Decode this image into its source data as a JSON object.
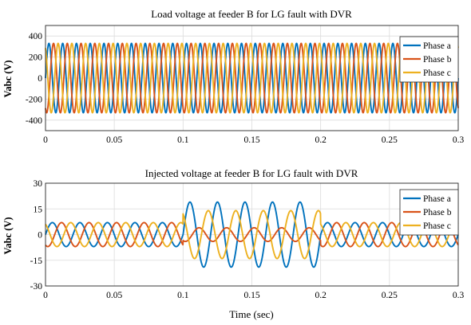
{
  "figure": {
    "xlabel": "Time (sec)"
  },
  "chart_data": [
    {
      "type": "line",
      "title": "Load voltage at feeder B for LG fault with DVR",
      "xlabel": "",
      "ylabel": "Vabc (V)",
      "xlim": [
        0,
        0.3
      ],
      "ylim": [
        -500,
        500
      ],
      "xticks": [
        0,
        0.05,
        0.1,
        0.15,
        0.2,
        0.25,
        0.3
      ],
      "xtick_labels": [
        "0",
        "0.05",
        "0.1",
        "0.15",
        "0.2",
        "0.25",
        "0.3"
      ],
      "yticks": [
        400,
        200,
        0,
        -200,
        -400
      ],
      "ytick_labels": [
        "400",
        "200",
        "0",
        "-200",
        "-400"
      ],
      "grid": true,
      "legend_position": "top-right",
      "frequency_hz": 100,
      "series": [
        {
          "name": "Phase a",
          "color": "#0072BD",
          "amplitude": 330,
          "phase_deg": 0
        },
        {
          "name": "Phase b",
          "color": "#D95319",
          "amplitude": 330,
          "phase_deg": -120
        },
        {
          "name": "Phase c",
          "color": "#EDB120",
          "amplitude": 330,
          "phase_deg": 120
        }
      ]
    },
    {
      "type": "line",
      "title": "Injected voltage at feeder B for LG fault with DVR",
      "xlabel": "Time (sec)",
      "ylabel": "Vabc (V)",
      "xlim": [
        0,
        0.3
      ],
      "ylim": [
        -30,
        30
      ],
      "xticks": [
        0,
        0.05,
        0.1,
        0.15,
        0.2,
        0.25,
        0.3
      ],
      "xtick_labels": [
        "0",
        "0.05",
        "0.1",
        "0.15",
        "0.2",
        "0.25",
        "0.3"
      ],
      "yticks": [
        30,
        15,
        0,
        -15,
        -30
      ],
      "ytick_labels": [
        "30",
        "15",
        "0",
        "-15",
        "-30"
      ],
      "grid": true,
      "legend_position": "top-right",
      "frequency_hz": 50,
      "fault_interval": [
        0.1,
        0.2
      ],
      "series": [
        {
          "name": "Phase a",
          "color": "#0072BD",
          "amplitude_normal": 7,
          "amplitude_fault": 19,
          "phase_deg": 0
        },
        {
          "name": "Phase b",
          "color": "#D95319",
          "amplitude_normal": 7,
          "amplitude_fault": 4,
          "phase_deg": -120
        },
        {
          "name": "Phase c",
          "color": "#EDB120",
          "amplitude_normal": 7,
          "amplitude_fault": 14,
          "phase_deg": 120
        }
      ]
    }
  ]
}
